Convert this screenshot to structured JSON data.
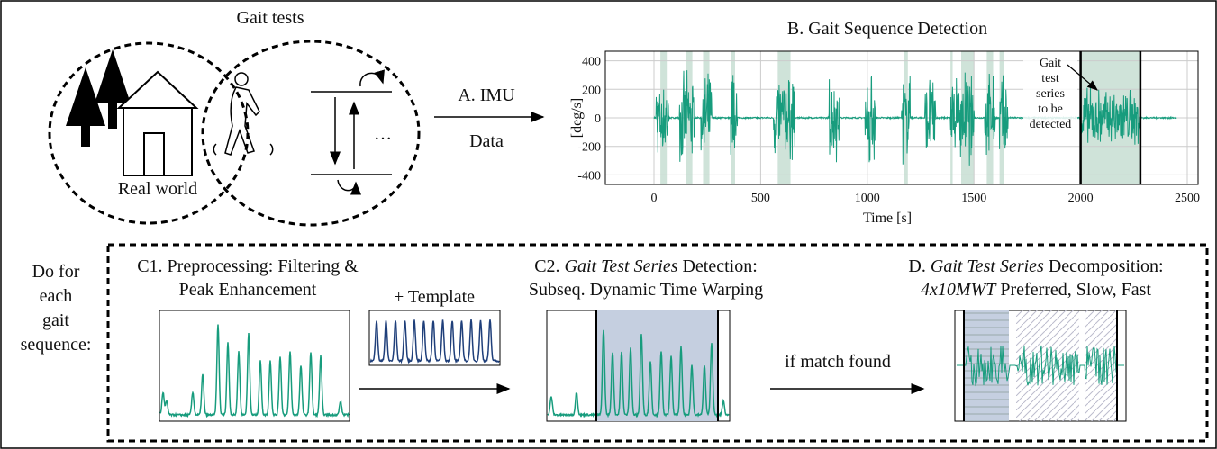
{
  "real_world": "Real world",
  "gait_tests": "Gait tests",
  "ellipsis": "…",
  "arrow_a": {
    "label": "A. IMU",
    "sublabel": "Data"
  },
  "plot_b": {
    "title": "B. Gait Sequence Detection",
    "ylabel": "[deg/s]",
    "xlabel": "Time [s]",
    "xticks": [
      0,
      500,
      1000,
      1500,
      2000,
      2500
    ],
    "yticks": [
      400,
      200,
      0,
      -200,
      -400
    ],
    "annotation": [
      "Gait",
      "test",
      "series",
      "to be",
      "detected"
    ]
  },
  "loop_label": [
    "Do for",
    "each",
    "gait",
    "sequence:"
  ],
  "c1": {
    "title": [
      "C1. Preprocessing: Filtering &",
      "Peak Enhancement"
    ]
  },
  "template": "+ Template",
  "c2": {
    "title_prefix": "C2.",
    "title_italic": "Gait Test Series",
    "title_suffix": "Detection:",
    "subtitle": "Subseq. Dynamic Time Warping"
  },
  "match": "if match found",
  "d": {
    "title_prefix": "D.",
    "title_italic": "Gait Test Series",
    "title_suffix": "Decomposition:",
    "subtitle_italic": "4x10MWT",
    "subtitle_suffix": "Preferred, Slow, Fast"
  }
}
